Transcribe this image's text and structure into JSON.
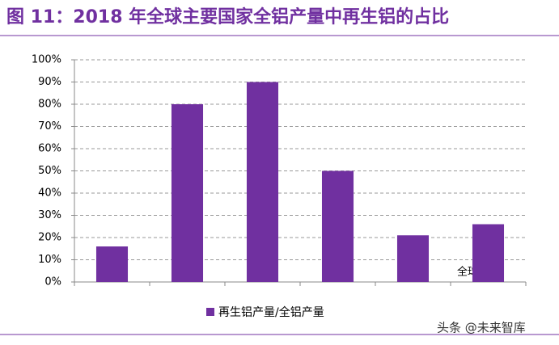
{
  "chart_data": {
    "type": "bar",
    "title": "图 11：2018 年全球主要国家全铝产量中再生铝的占比",
    "categories": [
      null,
      null,
      null,
      null,
      null,
      null
    ],
    "series": [
      {
        "name": "再生铝产量/全铝产量",
        "color": "#7030a0",
        "values": [
          16,
          80,
          90,
          50,
          21,
          26
        ]
      }
    ],
    "ylim": [
      0,
      100
    ],
    "yticks": [
      {
        "value": 0,
        "label": "0%"
      },
      {
        "value": 10,
        "label": "10%"
      },
      {
        "value": 20,
        "label": "20%"
      },
      {
        "value": 30,
        "label": "30%"
      },
      {
        "value": 40,
        "label": "40%"
      },
      {
        "value": 50,
        "label": "50%"
      },
      {
        "value": 60,
        "label": "60%"
      },
      {
        "value": 70,
        "label": "70%"
      },
      {
        "value": 80,
        "label": "80%"
      },
      {
        "value": 90,
        "label": "90%"
      },
      {
        "value": 100,
        "label": "100%"
      }
    ],
    "grid": true,
    "annotation": "全球中国",
    "watermark": "头条 @未来智库"
  }
}
